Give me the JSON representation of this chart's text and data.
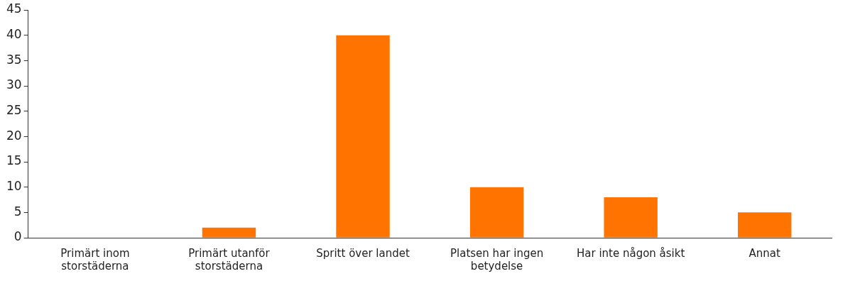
{
  "chart_data": {
    "type": "bar",
    "categories": [
      "Primärt inom storstäderna",
      "Primärt utanför storstäderna",
      "Spritt över landet",
      "Platsen har ingen betydelse",
      "Har inte någon åsikt",
      "Annat"
    ],
    "values": [
      0,
      2,
      40,
      10,
      8,
      5
    ],
    "color": "#ff7300",
    "ylim": [
      0,
      45
    ],
    "yticks": [
      0,
      5,
      10,
      15,
      20,
      25,
      30,
      35,
      40,
      45
    ],
    "grid": false,
    "legend": false
  }
}
